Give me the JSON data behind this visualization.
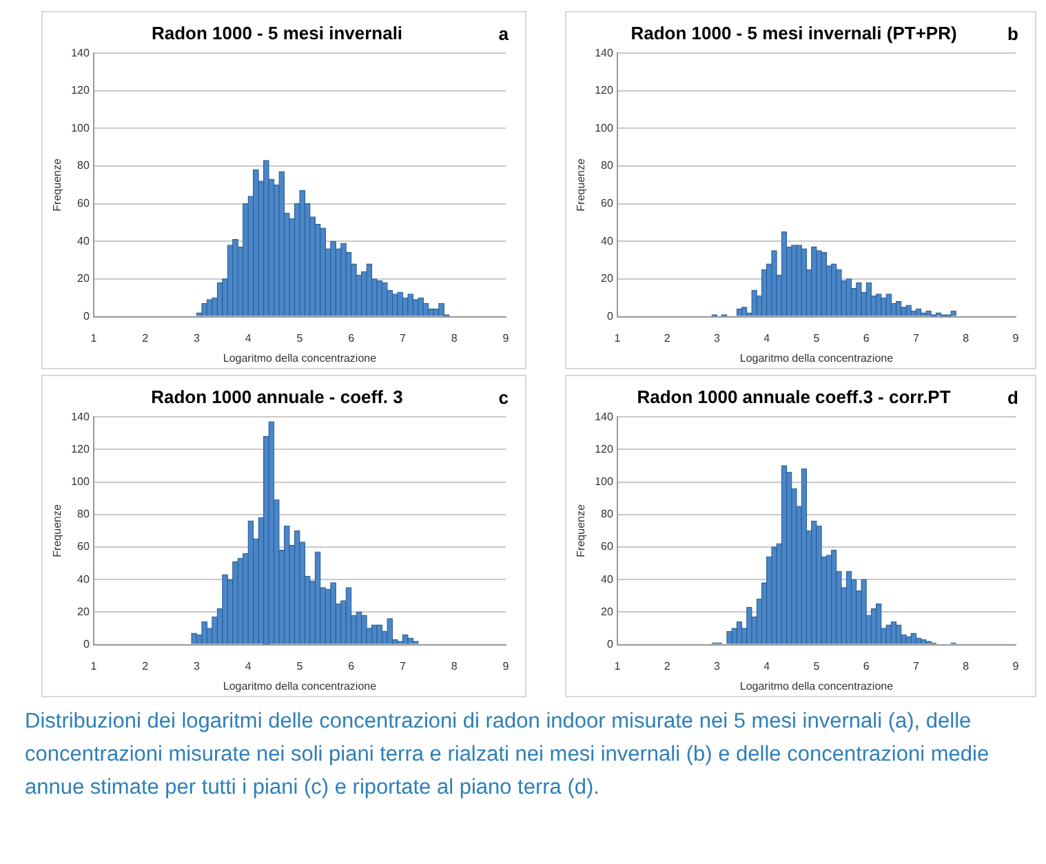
{
  "chart_data": [
    {
      "type": "histogram",
      "title": "Radon 1000 - 5 mesi invernali",
      "annotations": [
        "a"
      ],
      "xlabel": "Logaritmo della concentrazione",
      "ylabel": "Frequenze",
      "color": "#4a86c8",
      "grid": "y",
      "xlim": [
        1,
        9
      ],
      "xticks": [
        1,
        2,
        3,
        4,
        5,
        6,
        7,
        8,
        9
      ],
      "ylim": [
        0,
        140
      ],
      "yticks": [
        0,
        20,
        40,
        60,
        80,
        100,
        120,
        140
      ],
      "bins": [
        3.0,
        3.1,
        3.2,
        3.3,
        3.4,
        3.5,
        3.6,
        3.7,
        3.8,
        3.9,
        4.0,
        4.1,
        4.2,
        4.3,
        4.4,
        4.5,
        4.6,
        4.7,
        4.8,
        4.9,
        5.0,
        5.1,
        5.2,
        5.3,
        5.4,
        5.5,
        5.6,
        5.7,
        5.8,
        5.9,
        6.0,
        6.1,
        6.2,
        6.3,
        6.4,
        6.5,
        6.6,
        6.7,
        6.8,
        6.9,
        7.0,
        7.1,
        7.2,
        7.3,
        7.4,
        7.5,
        7.6,
        7.7,
        7.8,
        7.9
      ],
      "values": [
        2,
        7,
        9,
        10,
        18,
        20,
        38,
        41,
        37,
        60,
        64,
        78,
        72,
        83,
        73,
        70,
        77,
        55,
        52,
        60,
        67,
        60,
        53,
        49,
        47,
        36,
        40,
        36,
        39,
        34,
        28,
        22,
        24,
        28,
        20,
        19,
        18,
        14,
        12,
        13,
        10,
        12,
        9,
        10,
        7,
        4,
        4,
        7,
        1
      ]
    },
    {
      "type": "histogram",
      "title": "Radon 1000 - 5 mesi invernali (PT+PR)",
      "annotations": [
        "b"
      ],
      "xlabel": "Logaritmo della concentrazione",
      "ylabel": "Frequenze",
      "color": "#4a86c8",
      "grid": "y",
      "xlim": [
        1,
        9
      ],
      "xticks": [
        1,
        2,
        3,
        4,
        5,
        6,
        7,
        8,
        9
      ],
      "ylim": [
        0,
        140
      ],
      "yticks": [
        0,
        20,
        40,
        60,
        80,
        100,
        120,
        140
      ],
      "bins": [
        2.9,
        3.0,
        3.1,
        3.2,
        3.3,
        3.4,
        3.5,
        3.6,
        3.7,
        3.8,
        3.9,
        4.0,
        4.1,
        4.2,
        4.3,
        4.4,
        4.5,
        4.6,
        4.7,
        4.8,
        4.9,
        5.0,
        5.1,
        5.2,
        5.3,
        5.4,
        5.5,
        5.6,
        5.7,
        5.8,
        5.9,
        6.0,
        6.1,
        6.2,
        6.3,
        6.4,
        6.5,
        6.6,
        6.7,
        6.8,
        6.9,
        7.0,
        7.1,
        7.2,
        7.3,
        7.4,
        7.5,
        7.6,
        7.7,
        7.8
      ],
      "values": [
        1,
        0,
        1,
        0,
        0,
        4,
        5,
        2,
        14,
        11,
        25,
        28,
        35,
        22,
        45,
        37,
        38,
        38,
        36,
        25,
        37,
        35,
        34,
        27,
        28,
        25,
        19,
        20,
        15,
        18,
        13,
        18,
        11,
        12,
        10,
        12,
        7,
        8,
        5,
        6,
        3,
        4,
        2,
        3,
        1,
        2,
        1,
        1,
        3
      ]
    },
    {
      "type": "histogram",
      "title": "Radon 1000 annuale - coeff. 3",
      "annotations": [
        "c"
      ],
      "xlabel": "Logaritmo della concentrazione",
      "ylabel": "Frequenze",
      "color": "#4a86c8",
      "grid": "y",
      "xlim": [
        1,
        9
      ],
      "xticks": [
        1,
        2,
        3,
        4,
        5,
        6,
        7,
        8,
        9
      ],
      "ylim": [
        0,
        140
      ],
      "yticks": [
        0,
        20,
        40,
        60,
        80,
        100,
        120,
        140
      ],
      "bins": [
        2.9,
        3.0,
        3.1,
        3.2,
        3.3,
        3.4,
        3.5,
        3.6,
        3.7,
        3.8,
        3.9,
        4.0,
        4.1,
        4.2,
        4.3,
        4.4,
        4.5,
        4.6,
        4.7,
        4.8,
        4.9,
        5.0,
        5.1,
        5.2,
        5.3,
        5.4,
        5.5,
        5.6,
        5.7,
        5.8,
        5.9,
        6.0,
        6.1,
        6.2,
        6.3,
        6.4,
        6.5,
        6.6,
        6.7,
        6.8,
        6.9,
        7.0,
        7.1,
        7.2,
        7.3
      ],
      "values": [
        7,
        6,
        14,
        10,
        17,
        22,
        43,
        40,
        51,
        53,
        56,
        76,
        65,
        78,
        128,
        137,
        89,
        58,
        73,
        61,
        70,
        63,
        42,
        39,
        57,
        35,
        34,
        38,
        25,
        27,
        35,
        18,
        20,
        18,
        10,
        12,
        12,
        8,
        16,
        3,
        2,
        6,
        4,
        2
      ]
    },
    {
      "type": "histogram",
      "title": "Radon 1000 annuale coeff.3 - corr.PT",
      "annotations": [
        "d"
      ],
      "xlabel": "Logaritmo della concentrazione",
      "ylabel": "Frequenze",
      "color": "#4a86c8",
      "grid": "y",
      "xlim": [
        1,
        9
      ],
      "xticks": [
        1,
        2,
        3,
        4,
        5,
        6,
        7,
        8,
        9
      ],
      "ylim": [
        0,
        140
      ],
      "yticks": [
        0,
        20,
        40,
        60,
        80,
        100,
        120,
        140
      ],
      "bins": [
        2.9,
        3.0,
        3.1,
        3.2,
        3.3,
        3.4,
        3.5,
        3.6,
        3.7,
        3.8,
        3.9,
        4.0,
        4.1,
        4.2,
        4.3,
        4.4,
        4.5,
        4.6,
        4.7,
        4.8,
        4.9,
        5.0,
        5.1,
        5.2,
        5.3,
        5.4,
        5.5,
        5.6,
        5.7,
        5.8,
        5.9,
        6.0,
        6.1,
        6.2,
        6.3,
        6.4,
        6.5,
        6.6,
        6.7,
        6.8,
        6.9,
        7.0,
        7.1,
        7.2,
        7.3,
        7.4,
        7.5,
        7.6,
        7.7,
        7.8
      ],
      "values": [
        1,
        1,
        0,
        8,
        10,
        14,
        10,
        23,
        17,
        28,
        38,
        54,
        60,
        62,
        110,
        106,
        96,
        85,
        108,
        70,
        76,
        73,
        54,
        55,
        58,
        45,
        35,
        45,
        40,
        33,
        40,
        18,
        22,
        25,
        10,
        12,
        14,
        12,
        6,
        5,
        7,
        4,
        3,
        2,
        1,
        0,
        0,
        0,
        1
      ]
    },
    {
      "type": "other",
      "annotations": [
        "Distribuzioni dei logaritmi delle concentrazioni di radon indoor misurate nei 5 mesi invernali (a), delle concentrazioni misurate nei soli piani terra e rialzati nei mesi invernali (b) e delle concentrazioni medie annue stimate per tutti i piani (c) e riportate al piano terra (d)."
      ]
    }
  ]
}
